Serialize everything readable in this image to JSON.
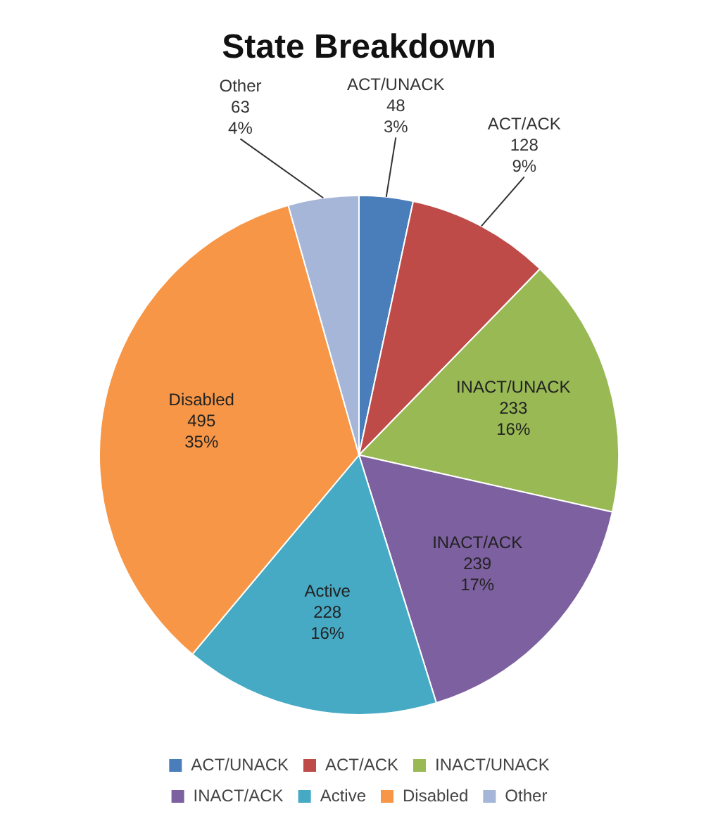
{
  "chart_data": {
    "type": "pie",
    "title": "State Breakdown",
    "categories": [
      "ACT/UNACK",
      "ACT/ACK",
      "INACT/UNACK",
      "INACT/ACK",
      "Active",
      "Disabled",
      "Other"
    ],
    "values": [
      48,
      128,
      233,
      239,
      228,
      495,
      63
    ],
    "value_labels": [
      "48\n3%",
      "128\n9%",
      "233\n16%",
      "239\n17%",
      "228\n16%",
      "495\n35%",
      "63\n4%"
    ],
    "colors": [
      "#4a7ebb",
      "#be4b48",
      "#98b954",
      "#7d60a0",
      "#46aac5",
      "#f79646",
      "#a5b6d8"
    ],
    "legend": "bottom"
  }
}
